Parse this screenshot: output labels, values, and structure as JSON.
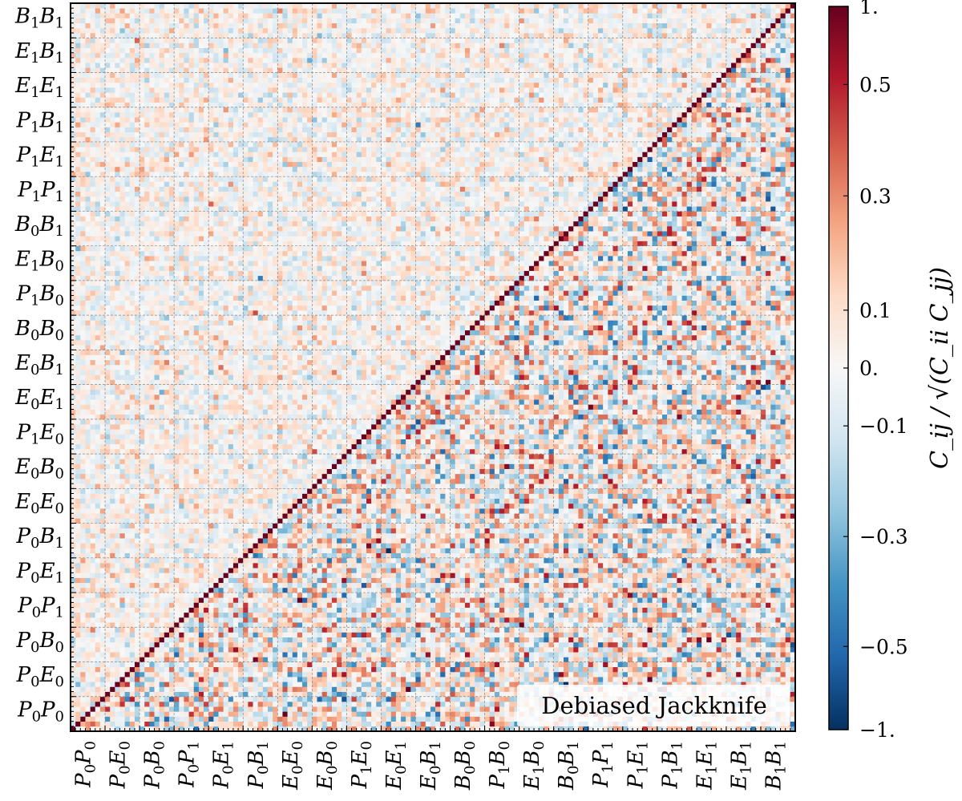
{
  "chart_data": {
    "type": "heatmap",
    "annotation": "Debiased Jackknife",
    "colorbar_label": "C_ij / √(C_ii C_jj)",
    "colorbar_ticks": [
      "1.",
      "0.5",
      "0.3",
      "0.1",
      "0.",
      "−0.1",
      "−0.3",
      "−0.5",
      "−1."
    ],
    "colorbar_tick_values": [
      1,
      0.5,
      0.3,
      0.1,
      0,
      -0.1,
      -0.3,
      -0.5,
      -1
    ],
    "value_range": [
      -1,
      1
    ],
    "colormap": [
      "#053061",
      "#2166ac",
      "#4393c3",
      "#92c5de",
      "#d1e5f0",
      "#f7f7f7",
      "#fddbc7",
      "#f4a582",
      "#d6604d",
      "#b2182b",
      "#67001f"
    ],
    "cells_per_block": 7,
    "blocks": [
      {
        "name": "P_0P_0",
        "a": "P",
        "ai": "0",
        "b": "P",
        "bi": "0"
      },
      {
        "name": "P_0E_0",
        "a": "P",
        "ai": "0",
        "b": "E",
        "bi": "0"
      },
      {
        "name": "P_0B_0",
        "a": "P",
        "ai": "0",
        "b": "B",
        "bi": "0"
      },
      {
        "name": "P_0P_1",
        "a": "P",
        "ai": "0",
        "b": "P",
        "bi": "1"
      },
      {
        "name": "P_0E_1",
        "a": "P",
        "ai": "0",
        "b": "E",
        "bi": "1"
      },
      {
        "name": "P_0B_1",
        "a": "P",
        "ai": "0",
        "b": "B",
        "bi": "1"
      },
      {
        "name": "E_0E_0",
        "a": "E",
        "ai": "0",
        "b": "E",
        "bi": "0"
      },
      {
        "name": "E_0B_0",
        "a": "E",
        "ai": "0",
        "b": "B",
        "bi": "0"
      },
      {
        "name": "P_1E_0",
        "a": "P",
        "ai": "1",
        "b": "E",
        "bi": "0"
      },
      {
        "name": "E_0E_1",
        "a": "E",
        "ai": "0",
        "b": "E",
        "bi": "1"
      },
      {
        "name": "E_0B_1",
        "a": "E",
        "ai": "0",
        "b": "B",
        "bi": "1"
      },
      {
        "name": "B_0B_0",
        "a": "B",
        "ai": "0",
        "b": "B",
        "bi": "0"
      },
      {
        "name": "P_1B_0",
        "a": "P",
        "ai": "1",
        "b": "B",
        "bi": "0"
      },
      {
        "name": "E_1B_0",
        "a": "E",
        "ai": "1",
        "b": "B",
        "bi": "0"
      },
      {
        "name": "B_0B_1",
        "a": "B",
        "ai": "0",
        "b": "B",
        "bi": "1"
      },
      {
        "name": "P_1P_1",
        "a": "P",
        "ai": "1",
        "b": "P",
        "bi": "1"
      },
      {
        "name": "P_1E_1",
        "a": "P",
        "ai": "1",
        "b": "E",
        "bi": "1"
      },
      {
        "name": "P_1B_1",
        "a": "P",
        "ai": "1",
        "b": "B",
        "bi": "1"
      },
      {
        "name": "E_1E_1",
        "a": "E",
        "ai": "1",
        "b": "E",
        "bi": "1"
      },
      {
        "name": "E_1B_1",
        "a": "E",
        "ai": "1",
        "b": "B",
        "bi": "1"
      },
      {
        "name": "B_1B_1",
        "a": "B",
        "ai": "1",
        "b": "B",
        "bi": "1"
      }
    ],
    "diagonal_value": 1.0,
    "upper_triangle_typical_abs_correlation": 0.15,
    "lower_triangle_typical_abs_correlation": 0.3,
    "grid": true,
    "legend": "none"
  }
}
